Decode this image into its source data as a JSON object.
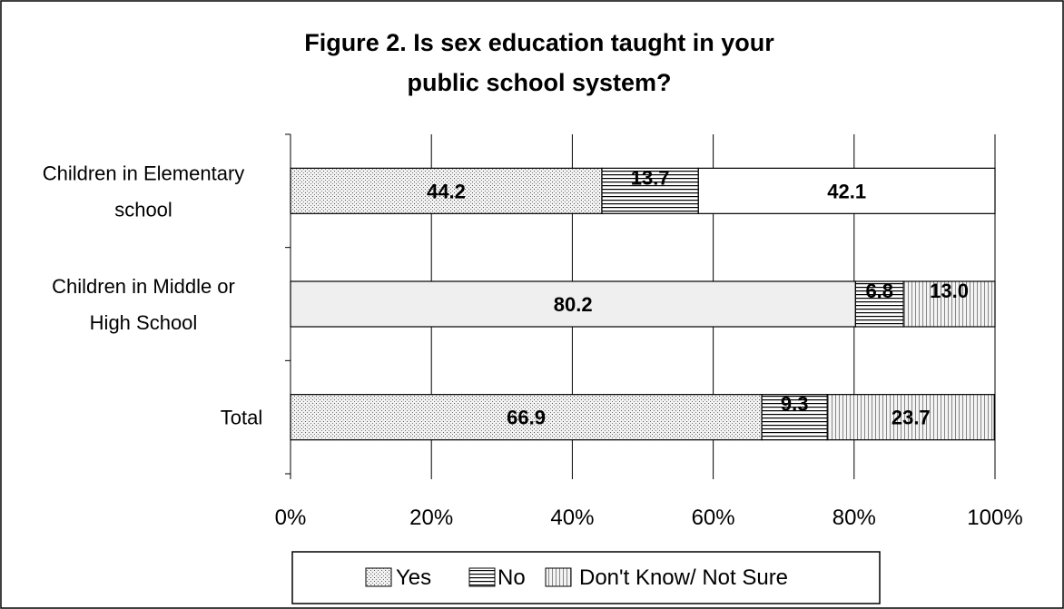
{
  "chart_data": {
    "type": "bar",
    "orientation": "horizontal",
    "stacked": true,
    "title_lines": [
      "Figure 2.  Is sex education taught in your",
      "public school system?"
    ],
    "categories": [
      {
        "lines": [
          "Children in Elementary",
          "school"
        ]
      },
      {
        "lines": [
          "Children in Middle or",
          "High School"
        ]
      },
      {
        "lines": [
          "Total"
        ]
      }
    ],
    "series": [
      {
        "name": "Yes",
        "values": [
          44.2,
          80.2,
          66.9
        ],
        "labels": [
          "44.2",
          "80.2",
          "66.9"
        ]
      },
      {
        "name": "No",
        "values": [
          13.7,
          6.8,
          9.3
        ],
        "labels": [
          "13.7",
          "6.8",
          "9.3"
        ]
      },
      {
        "name": "Don't Know/ Not Sure",
        "values": [
          42.1,
          13.0,
          23.7
        ],
        "labels": [
          "42.1",
          "13.0",
          "23.7"
        ]
      }
    ],
    "x_ticks": [
      "0%",
      "20%",
      "40%",
      "60%",
      "80%",
      "100%"
    ],
    "x_tick_values": [
      0,
      20,
      40,
      60,
      80,
      100
    ],
    "xlim": [
      0,
      100
    ],
    "grid": "vertical",
    "legend_position": "bottom"
  }
}
